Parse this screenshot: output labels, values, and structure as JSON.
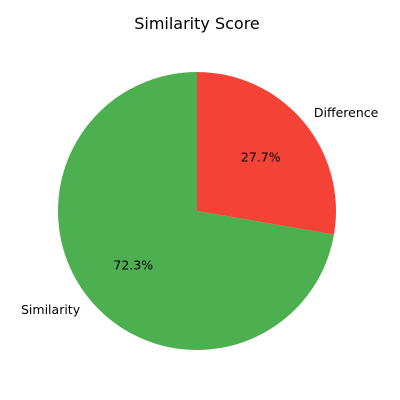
{
  "chart_data": {
    "type": "pie",
    "title": "Similarity Score",
    "slices": [
      {
        "label": "Similarity",
        "value": 72.3,
        "pct_label": "72.3%",
        "color": "#4caf50"
      },
      {
        "label": "Difference",
        "value": 27.7,
        "pct_label": "27.7%",
        "color": "#f44336"
      }
    ],
    "start_angle_deg": 90,
    "direction": "counterclockwise",
    "legend": "none"
  }
}
